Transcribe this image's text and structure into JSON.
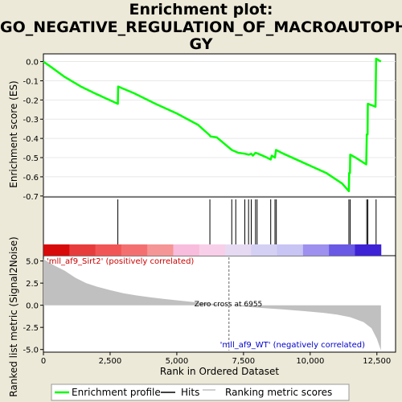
{
  "title_lines": [
    "Enrichment plot:",
    "GO_NEGATIVE_REGULATION_OF_MACROAUTOPHA",
    "GY"
  ],
  "chart_data": {
    "type": "line",
    "top_panel": {
      "ylabel": "Enrichment score (ES)",
      "yticks": [
        "0.0",
        "-0.1",
        "-0.2",
        "-0.3",
        "-0.4",
        "-0.5",
        "-0.6",
        "-0.7"
      ],
      "ylim": [
        -0.705,
        0.04
      ],
      "series_color": "#00ff00",
      "es_profile": [
        [
          0,
          0
        ],
        [
          300,
          -0.03
        ],
        [
          800,
          -0.08
        ],
        [
          1400,
          -0.13
        ],
        [
          2000,
          -0.17
        ],
        [
          2790,
          -0.22
        ],
        [
          2800,
          -0.13
        ],
        [
          3400,
          -0.165
        ],
        [
          4200,
          -0.22
        ],
        [
          5000,
          -0.27
        ],
        [
          5800,
          -0.33
        ],
        [
          6240,
          -0.385
        ],
        [
          6260,
          -0.39
        ],
        [
          6500,
          -0.395
        ],
        [
          7060,
          -0.46
        ],
        [
          7300,
          -0.475
        ],
        [
          7550,
          -0.48
        ],
        [
          7700,
          -0.485
        ],
        [
          7790,
          -0.48
        ],
        [
          7850,
          -0.49
        ],
        [
          7950,
          -0.475
        ],
        [
          8050,
          -0.48
        ],
        [
          8300,
          -0.495
        ],
        [
          8520,
          -0.51
        ],
        [
          8560,
          -0.49
        ],
        [
          8680,
          -0.5
        ],
        [
          8720,
          -0.46
        ],
        [
          9000,
          -0.48
        ],
        [
          9800,
          -0.53
        ],
        [
          10600,
          -0.58
        ],
        [
          11200,
          -0.635
        ],
        [
          11450,
          -0.675
        ],
        [
          11460,
          -0.58
        ],
        [
          11490,
          -0.58
        ],
        [
          11500,
          -0.485
        ],
        [
          11700,
          -0.5
        ],
        [
          12100,
          -0.535
        ],
        [
          12120,
          -0.38
        ],
        [
          12150,
          -0.38
        ],
        [
          12160,
          -0.22
        ],
        [
          12450,
          -0.235
        ],
        [
          12470,
          0.015
        ],
        [
          12650,
          0
        ]
      ]
    },
    "hits": [
      2790,
      6240,
      7060,
      7210,
      7550,
      7690,
      7790,
      7950,
      8010,
      8520,
      8680,
      8730,
      11450,
      11500,
      12120,
      12160,
      12470
    ],
    "color_bar": [
      "#d80a0a",
      "#e83c3c",
      "#f25555",
      "#f47070",
      "#f59595",
      "#f8bcdc",
      "#f8cfe8",
      "#e6daf2",
      "#d4d0f4",
      "#c8c4f4",
      "#9d90ee",
      "#6a59e4",
      "#3d22d6"
    ],
    "bottom_panel": {
      "ylabel": "Ranked list metric (Signal2Noise)",
      "yticks": [
        "5.0",
        "2.5",
        "0.0",
        "-2.5",
        "-5.0"
      ],
      "ylim": [
        -5.3,
        5.6
      ],
      "zero_cross_label": "Zero cross at 6955",
      "zero_cross": 6955,
      "positive_label": "'mll_af9_Sirt2' (positively correlated)",
      "negative_label": "'mll_af9_WT' (negatively correlated)",
      "metric_curve": [
        [
          0,
          5.2
        ],
        [
          400,
          4.5
        ],
        [
          800,
          3.9
        ],
        [
          1200,
          3.1
        ],
        [
          1600,
          2.5
        ],
        [
          2000,
          2.1
        ],
        [
          2500,
          1.7
        ],
        [
          3000,
          1.35
        ],
        [
          3500,
          1.1
        ],
        [
          4000,
          0.9
        ],
        [
          4500,
          0.72
        ],
        [
          5000,
          0.56
        ],
        [
          5500,
          0.4
        ],
        [
          6000,
          0.26
        ],
        [
          6500,
          0.12
        ],
        [
          6955,
          0
        ],
        [
          7500,
          -0.14
        ],
        [
          8000,
          -0.27
        ],
        [
          8500,
          -0.38
        ],
        [
          9000,
          -0.48
        ],
        [
          9500,
          -0.6
        ],
        [
          10000,
          -0.72
        ],
        [
          10500,
          -0.86
        ],
        [
          11000,
          -1.05
        ],
        [
          11500,
          -1.35
        ],
        [
          12000,
          -1.9
        ],
        [
          12300,
          -2.6
        ],
        [
          12500,
          -3.8
        ],
        [
          12650,
          -5.1
        ]
      ]
    },
    "xlabel": "Rank in Ordered Dataset",
    "xticks": [
      "0",
      "2,500",
      "5,000",
      "7,500",
      "10,000",
      "12,500"
    ],
    "xlim": [
      0,
      13200
    ],
    "legend": {
      "position": "bottom",
      "items": [
        {
          "label": "Enrichment profile",
          "color": "#00ff00"
        },
        {
          "label": "Hits",
          "color": "#000000"
        },
        {
          "label": "Ranking metric scores",
          "color": "#c0c0c0"
        }
      ]
    }
  }
}
